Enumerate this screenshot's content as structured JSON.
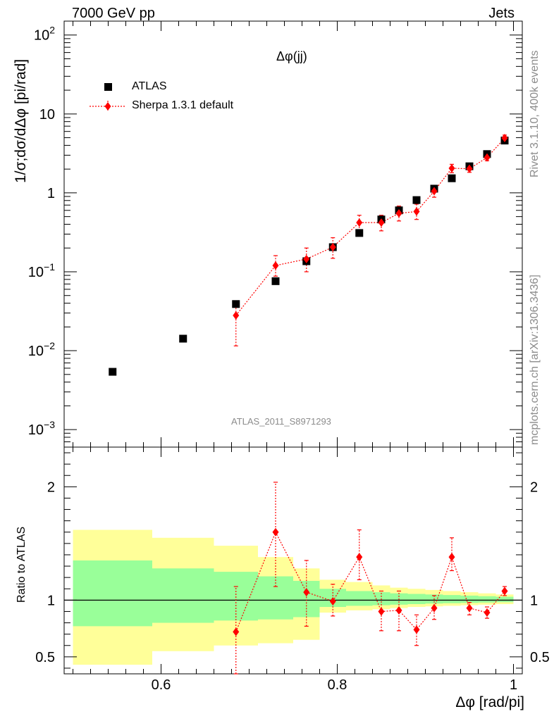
{
  "header": {
    "left": "7000 GeV pp",
    "right": "Jets"
  },
  "side_labels": {
    "rivet": "Rivet 3.1.10,  400k events",
    "mcplots": "mcplots.cern.ch [arXiv:1306.3436]"
  },
  "analysis_id": "ATLAS_2011_S8971293",
  "colors": {
    "data": "#000000",
    "mc": "#ff0000",
    "band_outer": "#ffff99",
    "band_inner": "#99ff99"
  },
  "chart_data": [
    {
      "type": "scatter",
      "panel": "main",
      "title": "Δφ(jj)",
      "ylabel": "1/σ;dσ/dΔφ [pi/rad]",
      "yscale": "log",
      "ylim": [
        0.0006,
        150
      ],
      "xlim": [
        0.49,
        1.01
      ],
      "yticks": [
        "10^-3",
        "10^-2",
        "10^-1",
        "1",
        "10",
        "10^2"
      ],
      "legend": {
        "placement": "top-left",
        "entries": [
          "ATLAS",
          "Sherpa 1.3.1 default"
        ]
      },
      "series": [
        {
          "name": "ATLAS",
          "marker": "square",
          "x": [
            0.545,
            0.625,
            0.685,
            0.73,
            0.765,
            0.795,
            0.825,
            0.85,
            0.87,
            0.89,
            0.91,
            0.93,
            0.95,
            0.97,
            0.99
          ],
          "y": [
            0.0054,
            0.0142,
            0.039,
            0.076,
            0.136,
            0.205,
            0.31,
            0.46,
            0.6,
            0.81,
            1.13,
            1.53,
            2.17,
            3.1,
            4.6
          ]
        },
        {
          "name": "Sherpa 1.3.1 default",
          "marker": "diamond",
          "x": [
            0.685,
            0.73,
            0.765,
            0.795,
            0.825,
            0.85,
            0.87,
            0.89,
            0.91,
            0.93,
            0.95,
            0.97,
            0.99
          ],
          "y": [
            0.028,
            0.12,
            0.145,
            0.205,
            0.42,
            0.42,
            0.55,
            0.58,
            1.05,
            2.05,
            2.02,
            2.8,
            4.95
          ],
          "yerr_low": [
            0.0115,
            0.088,
            0.1,
            0.148,
            0.33,
            0.33,
            0.44,
            0.46,
            0.88,
            1.8,
            1.82,
            2.55,
            4.5
          ],
          "yerr_high": [
            0.04,
            0.16,
            0.2,
            0.27,
            0.52,
            0.52,
            0.68,
            0.72,
            1.22,
            2.3,
            2.22,
            3.08,
            5.4
          ]
        }
      ]
    },
    {
      "type": "line",
      "panel": "ratio",
      "ylabel": "Ratio to ATLAS",
      "xlabel": "Δφ [rad/pi]",
      "ylim": [
        0.35,
        2.35
      ],
      "xlim": [
        0.49,
        1.01
      ],
      "xticks": [
        "0.6",
        "0.8",
        "1"
      ],
      "yticks": [
        "0.5",
        "1",
        "2"
      ],
      "bands": {
        "edges": [
          0.5,
          0.59,
          0.66,
          0.71,
          0.75,
          0.78,
          0.81,
          0.84,
          0.86,
          0.88,
          0.9,
          0.92,
          0.94,
          0.96,
          0.98,
          1.0
        ],
        "outer_low": [
          0.43,
          0.55,
          0.6,
          0.62,
          0.65,
          0.89,
          0.91,
          0.92,
          0.93,
          0.94,
          0.945,
          0.95,
          0.955,
          0.96,
          0.965
        ],
        "outer_high": [
          1.62,
          1.55,
          1.48,
          1.38,
          1.28,
          1.18,
          1.16,
          1.13,
          1.11,
          1.1,
          1.09,
          1.08,
          1.07,
          1.06,
          1.05
        ],
        "inner_low": [
          0.77,
          0.8,
          0.82,
          0.83,
          0.85,
          0.94,
          0.95,
          0.955,
          0.96,
          0.965,
          0.97,
          0.973,
          0.976,
          0.979,
          0.982
        ],
        "inner_high": [
          1.35,
          1.28,
          1.25,
          1.21,
          1.17,
          1.1,
          1.08,
          1.07,
          1.06,
          1.055,
          1.05,
          1.045,
          1.04,
          1.035,
          1.03
        ]
      },
      "series": [
        {
          "name": "Sherpa 1.3.1 default",
          "x": [
            0.685,
            0.73,
            0.765,
            0.795,
            0.825,
            0.85,
            0.87,
            0.89,
            0.91,
            0.93,
            0.95,
            0.97,
            0.99
          ],
          "y": [
            0.72,
            1.6,
            1.07,
            0.99,
            1.38,
            0.9,
            0.91,
            0.74,
            0.93,
            1.38,
            0.93,
            0.89,
            1.08
          ],
          "yerr_low": [
            0.3,
            1.12,
            0.77,
            0.86,
            1.18,
            0.73,
            0.73,
            0.6,
            0.83,
            1.26,
            0.87,
            0.84,
            1.04
          ],
          "yerr_high": [
            1.12,
            2.04,
            1.35,
            1.14,
            1.62,
            1.08,
            1.08,
            0.87,
            1.04,
            1.55,
            0.98,
            0.94,
            1.12
          ]
        }
      ]
    }
  ]
}
